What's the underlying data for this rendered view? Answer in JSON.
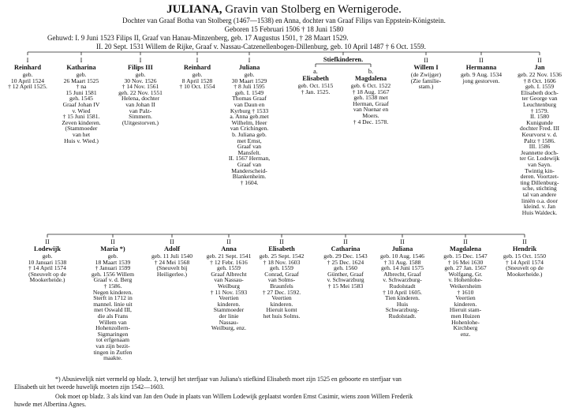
{
  "header": {
    "title": "JULIANA,",
    "title_rest": "Gravin van Stolberg en Wernigerode.",
    "lines": [
      "Dochter van Graaf Botha van Stolberg (1467—1538) en Anna, dochter van Graaf Filips van Eppstein-Königstein.",
      "Geboren 15 Februari 1506 † 18 Juni 1580",
      "Gehuwd: I. 9 Juni 1523 Filips II, Graaf van Hanau-Minzenberg, geb. 17 Augustus 1501, † 28 Maart 1529.",
      "II. 20 Sept. 1531 Willem de Rijke, Graaf v. Nassau-Catzenellenbogen-Dillenburg, geb. 10 April 1487 † 6 Oct. 1559."
    ]
  },
  "stepchildren_label": "Stiefkinderen.",
  "row1": [
    {
      "mark": "I",
      "name": "Reinhard",
      "lines": [
        "geb.",
        "10 April 1524",
        "† 12 April 1525."
      ]
    },
    {
      "mark": "I",
      "name": "Katharina",
      "lines": [
        "geb.",
        "26 Maart 1525",
        "† na",
        "15 Juni 1581",
        "geh. 1545",
        "Graaf Johan IV",
        "v. Wied",
        "† 15 Juni 1581.",
        "Zeven kinderen.",
        "(Stammoeder",
        "van het",
        "Huis v. Wied.)"
      ]
    },
    {
      "mark": "I",
      "name": "Filips III",
      "lines": [
        "geb.",
        "30 Nov. 1526",
        "† 14 Nov. 1561",
        "geh. 22 Nov. 1551",
        "Helena, dochter",
        "van Johan II",
        "van Palz-",
        "Simmern.",
        "(Uitgestorven.)"
      ]
    },
    {
      "mark": "I",
      "name": "Reinhard",
      "lines": [
        "geb.",
        "8 April 1528",
        "† 10 Oct. 1554"
      ]
    },
    {
      "mark": "I",
      "name": "Juliana",
      "lines": [
        "geb.",
        "30 Maart 1529",
        "† 8 Juli 1595",
        "geh. I. 1549",
        "Thomas Graaf",
        "van Daun en",
        "Kyrburg † 1533",
        "a. Anna geb.met",
        "Wilhelm, Heer",
        "van Crichingen.",
        "b. Juliana geb.",
        "met Ernst,",
        "Graaf van",
        "Mansfelt.",
        "II. 1567 Herman,",
        "Graaf van",
        "Manderscheid-",
        "Blankenheim.",
        "† 1604."
      ]
    },
    {
      "mark": "a.",
      "name": "Elisabeth",
      "lines": [
        "geb. Oct. 1515",
        "† Jan. 1525."
      ]
    },
    {
      "mark": "b.",
      "name": "Magdalena",
      "lines": [
        "geb. 6 Oct. 1522",
        "† 18 Aug. 1567",
        "geh. 1538 met",
        "Herman, Graaf",
        "van Nuenar en",
        "Moers.",
        "† 4 Dec. 1578."
      ]
    },
    {
      "mark": "II",
      "name": "Willem I",
      "lines": [
        "(de Zwijger)",
        "(Zie familie-",
        "stam.)"
      ]
    },
    {
      "mark": "II",
      "name": "Hermanna",
      "lines": [
        "geb. 9 Aug. 1534",
        "jong gestorven."
      ]
    },
    {
      "mark": "II",
      "name": "Jan",
      "lines": [
        "geb. 22 Nov. 1536",
        "† 8 Oct. 1606",
        "geh. I. 1559",
        "Elisabeth doch-",
        "ter George van",
        "Leuchtenburg",
        "† 1579.",
        "II. 1580",
        "Kunigunde",
        "dochter Fred. III",
        "Keurvorst v. d.",
        "Paltz † 1586.",
        "III. 1586",
        "Jeannette doch-",
        "ter Gr. Lodewijk",
        "van Sayn.",
        "Twintig kin-",
        "deren. Voortzet-",
        "ting Dillenburg-",
        "sche, stichting",
        "tal van andere",
        "liniën o.a. door",
        "kleind. v. Jan",
        "Huis Waldeck."
      ]
    }
  ],
  "row2": [
    {
      "mark": "II",
      "name": "Lodewijk",
      "lines": [
        "geb.",
        "10 Januari 1538",
        "† 14 April 1574",
        "(Sneuvelt op de",
        "Mookerheide.)"
      ]
    },
    {
      "mark": "II",
      "name": "Maria *)",
      "lines": [
        "geb.",
        "18 Maart 1539",
        "† Januari 1599",
        "geh. 1556 Willem",
        "Graaf v. d. Berg",
        "† 1586.",
        "Negen kinderen.",
        "Sterft in 1712 in",
        "mannel. linie uit",
        "met Oswald III,",
        "die als Frans",
        "Willem van",
        "Hohenzollern-",
        "Sigmaringen",
        "tot erfgenaam",
        "van zijn bezit-",
        "tingen in Zutfen",
        "maakte."
      ]
    },
    {
      "mark": "II",
      "name": "Adolf",
      "lines": [
        "geb. 11 Juli 1540",
        "† 24 Mei 1568",
        "(Sneuvelt bij",
        "Heiligerlee.)"
      ]
    },
    {
      "mark": "II",
      "name": "Anna",
      "lines": [
        "geb. 21 Sept. 1541",
        "† 12 Febr. 1616",
        "geh. 1559",
        "Graaf Albrecht",
        "van Nassau-",
        "Weilburg",
        "† 11 Nov. 1593",
        "Veertien",
        "kinderen.",
        "Stammoeder",
        "der linie",
        "Nassau-",
        "Weilburg, enz."
      ]
    },
    {
      "mark": "II",
      "name": "Elisabeth",
      "lines": [
        "geb. 25 Sept. 1542",
        "† 18 Nov. 1603",
        "geh. 1559",
        "Conrad, Graaf",
        "van Solms-",
        "Braunfels",
        "† 27 Dec. 1592.",
        "Veertien",
        "kinderen.",
        "Hieruit komt",
        "het huis Solms."
      ]
    },
    {
      "mark": "II",
      "name": "Catharina",
      "lines": [
        "geb. 29 Dec. 1543",
        "† 25 Dec. 1624",
        "geh. 1560",
        "Günther, Graaf",
        "v. Schwarzburg",
        "† 15 Mei 1583"
      ]
    },
    {
      "mark": "II",
      "name": "Juliana",
      "lines": [
        "geb. 10 Aug. 1546",
        "† 31 Aug. 1588",
        "geh. 14 Juni 1575",
        "Albrecht, Graaf",
        "v. Schwarzburg-",
        "Rudolstadt",
        "† 10 April 1605.",
        "Tien kinderen.",
        "Huis",
        "Schwarzburg-",
        "Rudolstadt."
      ]
    },
    {
      "mark": "II",
      "name": "Magdalena",
      "lines": [
        "geb. 15 Dec. 1547",
        "† 16 Mei 1630",
        "geh. 27 Jan. 1567",
        "Wolfgang, Gr.",
        "v. Hohenlohe-",
        "Weikersheim",
        "† 1610",
        "Veertien",
        "kinderen.",
        "Hieruit stam-",
        "men Huizen",
        "Hohenlohe-",
        "Kirchberg",
        "enz."
      ]
    },
    {
      "mark": "II",
      "name": "Hendrik",
      "lines": [
        "geb. 15 Oct. 1550",
        "† 14 April 1574",
        "(Sneuvelt op de",
        "Mookerheide.)"
      ]
    }
  ],
  "footnote": [
    "*) Abusievelijk niet vermeld op bladz. 3, terwijl het sterfjaar van Juliana's stiefkind Elisabeth moet zijn 1525 en geboorte en sterfjaar van",
    "Elisabeth uit het tweede huwelijk moeten zijn 1542—1603.",
    "Ook moet op bladz. 3 als kind van Jan den Oude in plaats van Willem Lodewijk geplaatst worden Ernst Casimir, wiens zoon Willem Frederik",
    "huwde met Albertina Agnes."
  ]
}
